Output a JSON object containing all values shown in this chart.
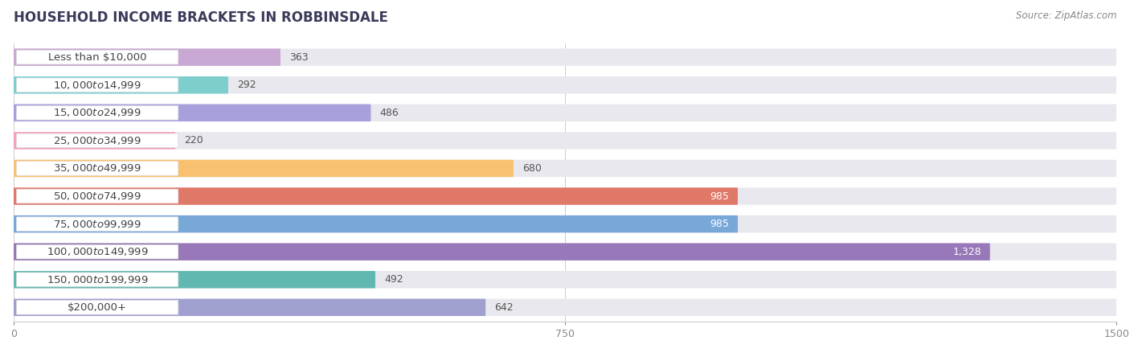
{
  "title": "HOUSEHOLD INCOME BRACKETS IN ROBBINSDALE",
  "source": "Source: ZipAtlas.com",
  "categories": [
    "Less than $10,000",
    "$10,000 to $14,999",
    "$15,000 to $24,999",
    "$25,000 to $34,999",
    "$35,000 to $49,999",
    "$50,000 to $74,999",
    "$75,000 to $99,999",
    "$100,000 to $149,999",
    "$150,000 to $199,999",
    "$200,000+"
  ],
  "values": [
    363,
    292,
    486,
    220,
    680,
    985,
    985,
    1328,
    492,
    642
  ],
  "bar_colors": [
    "#c9a8d4",
    "#7ecece",
    "#a8a0dc",
    "#f4a0b8",
    "#f9c070",
    "#e07868",
    "#78a8d8",
    "#9878b8",
    "#60b8b0",
    "#a0a0d0"
  ],
  "xlim": [
    0,
    1500
  ],
  "xticks": [
    0,
    750,
    1500
  ],
  "value_inside_threshold": 750,
  "background_color": "#ffffff",
  "bar_bg_color": "#e8e8ee",
  "title_fontsize": 12,
  "source_fontsize": 8.5,
  "label_fontsize": 9.5,
  "value_fontsize": 9
}
